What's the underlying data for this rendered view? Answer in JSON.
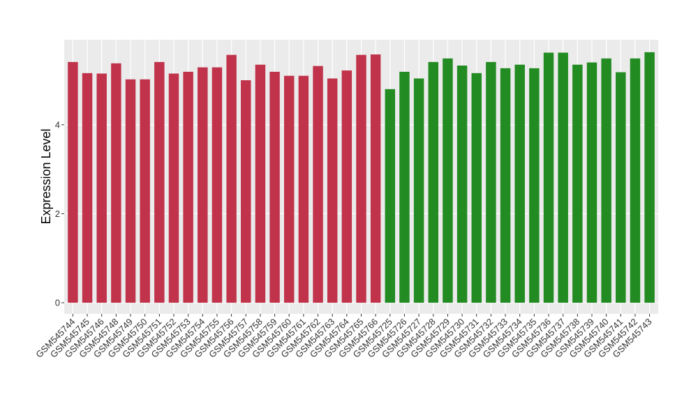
{
  "chart_data": {
    "type": "bar",
    "ylabel": "Expression Level",
    "categories": [
      "GSM545744",
      "GSM545745",
      "GSM545746",
      "GSM545748",
      "GSM545749",
      "GSM545750",
      "GSM545751",
      "GSM545752",
      "GSM545753",
      "GSM545754",
      "GSM545755",
      "GSM545756",
      "GSM545757",
      "GSM545758",
      "GSM545759",
      "GSM545760",
      "GSM545761",
      "GSM545762",
      "GSM545763",
      "GSM545764",
      "GSM545765",
      "GSM545766",
      "GSM545725",
      "GSM545726",
      "GSM545727",
      "GSM545728",
      "GSM545729",
      "GSM545730",
      "GSM545731",
      "GSM545732",
      "GSM545733",
      "GSM545734",
      "GSM545735",
      "GSM545736",
      "GSM545737",
      "GSM545738",
      "GSM545739",
      "GSM545740",
      "GSM545741",
      "GSM545742",
      "GSM545743"
    ],
    "values": [
      5.41,
      5.16,
      5.15,
      5.38,
      5.02,
      5.02,
      5.41,
      5.15,
      5.19,
      5.29,
      5.29,
      5.57,
      5.0,
      5.35,
      5.19,
      5.1,
      5.1,
      5.32,
      5.04,
      5.22,
      5.57,
      5.58,
      4.8,
      5.19,
      5.04,
      5.41,
      5.49,
      5.33,
      5.16,
      5.41,
      5.27,
      5.35,
      5.27,
      5.62,
      5.62,
      5.35,
      5.4,
      5.49,
      5.18,
      5.49,
      5.63
    ],
    "colors": [
      "#c0334b",
      "#c0334b",
      "#c0334b",
      "#c0334b",
      "#c0334b",
      "#c0334b",
      "#c0334b",
      "#c0334b",
      "#c0334b",
      "#c0334b",
      "#c0334b",
      "#c0334b",
      "#c0334b",
      "#c0334b",
      "#c0334b",
      "#c0334b",
      "#c0334b",
      "#c0334b",
      "#c0334b",
      "#c0334b",
      "#c0334b",
      "#c0334b",
      "#228b22",
      "#228b22",
      "#228b22",
      "#228b22",
      "#228b22",
      "#228b22",
      "#228b22",
      "#228b22",
      "#228b22",
      "#228b22",
      "#228b22",
      "#228b22",
      "#228b22",
      "#228b22",
      "#228b22",
      "#228b22",
      "#228b22",
      "#228b22",
      "#228b22"
    ],
    "ylim": [
      -0.25,
      5.91
    ],
    "yticks": [
      0,
      2,
      4
    ],
    "grid": true
  }
}
